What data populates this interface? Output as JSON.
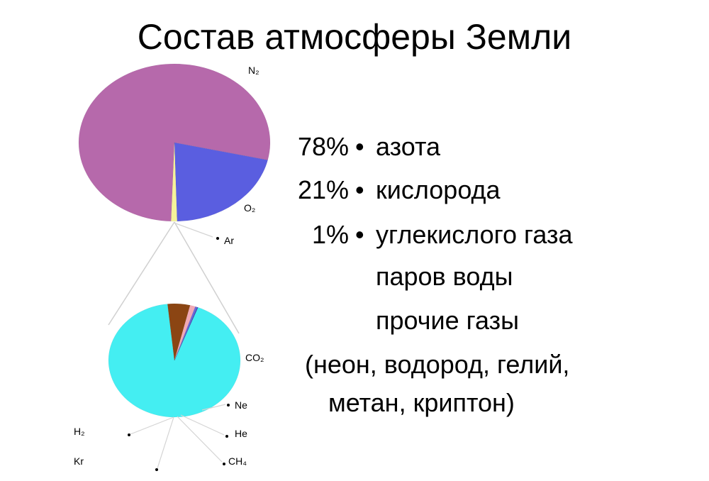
{
  "title": "Состав атмосферы Земли",
  "chart_data": [
    {
      "type": "pie",
      "slices": [
        {
          "label": "N₂",
          "value": 78,
          "color": "#b669ab"
        },
        {
          "label": "O₂",
          "value": 21,
          "color": "#5a5ee0"
        },
        {
          "label": "Ar",
          "value": 1,
          "color": "#f5f39a"
        }
      ]
    },
    {
      "type": "pie",
      "slices": [
        {
          "label": "CO₂",
          "value": 92.5,
          "color": "#44eef2"
        },
        {
          "label": "Ne",
          "value": 5.5,
          "color": "#8b4513"
        },
        {
          "label": "He",
          "value": 1.3,
          "color": "#f2a9b5"
        },
        {
          "label": "CH₄",
          "value": 0.5,
          "color": "#6a68d8"
        },
        {
          "label": "H₂",
          "value": 0.1,
          "color": "#3f3fd6"
        },
        {
          "label": "Kr",
          "value": 0.1,
          "color": "#1f1fa0"
        }
      ]
    }
  ],
  "legend": [
    {
      "pct": "78%",
      "bullet": "•",
      "text": "азота"
    },
    {
      "pct": "21%",
      "bullet": "•",
      "text": "кислорода"
    },
    {
      "pct": "1%",
      "bullet": "•",
      "text": "углекислого газа"
    },
    {
      "pct": "",
      "bullet": "",
      "text": "паров воды"
    },
    {
      "pct": "",
      "bullet": "",
      "text": "прочие газы"
    },
    {
      "pct": "",
      "bullet": "",
      "text": "(неон, водород, гелий,"
    },
    {
      "pct": "",
      "bullet": "",
      "text": "метан, криптон)"
    }
  ]
}
